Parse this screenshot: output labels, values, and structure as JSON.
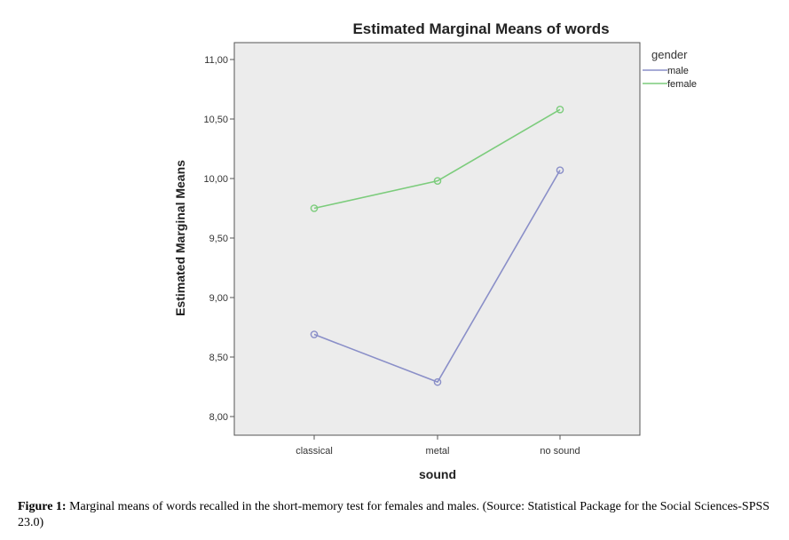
{
  "chart_data": {
    "type": "line",
    "title": "Estimated Marginal Means of words",
    "xlabel": "sound",
    "ylabel": "Estimated Marginal Means",
    "categories": [
      "classical",
      "metal",
      "no sound"
    ],
    "ylim": [
      7.8,
      11.05
    ],
    "yticks": [
      8.0,
      8.5,
      9.0,
      9.5,
      10.0,
      10.5,
      11.0
    ],
    "ytick_labels": [
      "8,00",
      "8,50",
      "9,00",
      "9,50",
      "10,00",
      "10,50",
      "11,00"
    ],
    "legend_title": "gender",
    "legend_position": "top-right outside plot",
    "grid": false,
    "plot_background": "#ececec",
    "series": [
      {
        "name": "male",
        "color": "#8a8fc8",
        "values": [
          8.69,
          8.29,
          10.07
        ]
      },
      {
        "name": "female",
        "color": "#7ccc7c",
        "values": [
          9.75,
          9.98,
          10.58
        ]
      }
    ]
  },
  "caption": {
    "label": "Figure 1:",
    "text": " Marginal means of words recalled in the short-memory test for females and males. (Source: Statistical Package for the Social Sciences-SPSS 23.0)"
  }
}
